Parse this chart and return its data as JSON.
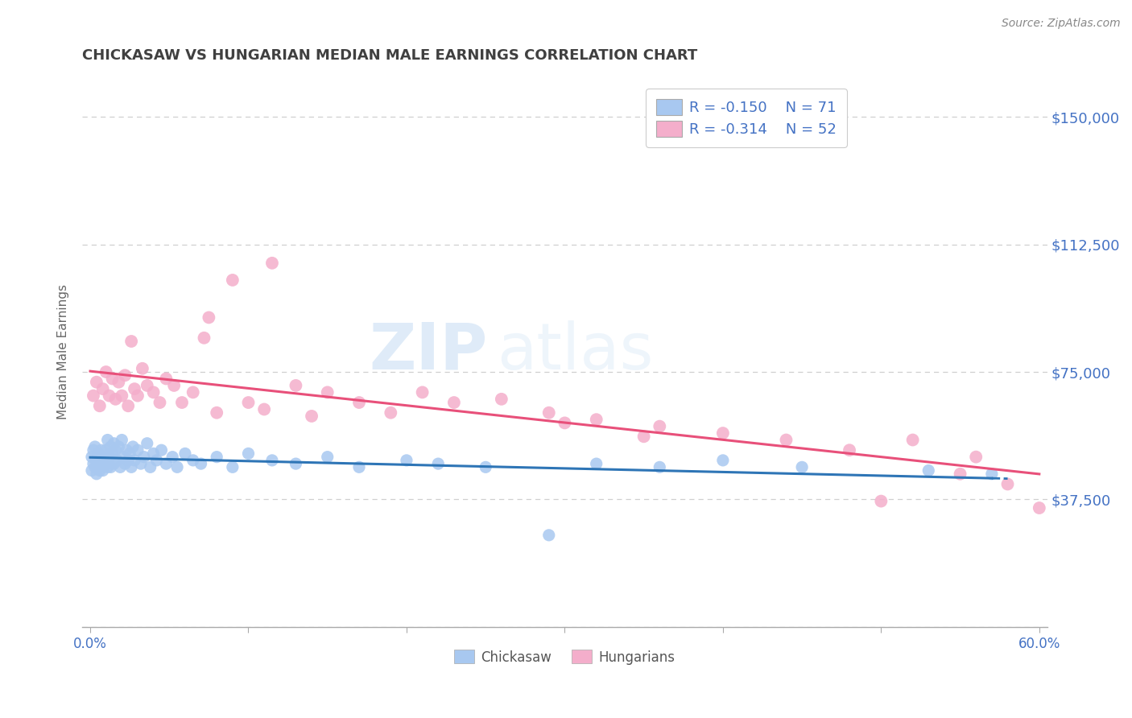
{
  "title": "CHICKASAW VS HUNGARIAN MEDIAN MALE EARNINGS CORRELATION CHART",
  "source_text": "Source: ZipAtlas.com",
  "ylabel": "Median Male Earnings",
  "xlim": [
    -0.005,
    0.605
  ],
  "ylim": [
    0,
    162000
  ],
  "yticks": [
    0,
    37500,
    75000,
    112500,
    150000
  ],
  "ytick_labels": [
    "",
    "$37,500",
    "$75,000",
    "$112,500",
    "$150,000"
  ],
  "xticks": [
    0.0,
    0.1,
    0.2,
    0.3,
    0.4,
    0.5,
    0.6
  ],
  "xtick_labels_show": [
    "0.0%",
    "",
    "",
    "",
    "",
    "",
    "60.0%"
  ],
  "blue_color": "#A8C8F0",
  "pink_color": "#F4AECB",
  "blue_line_color": "#2E75B6",
  "pink_line_color": "#E8507A",
  "legend_R1": "R = -0.150",
  "legend_N1": "N = 71",
  "legend_R2": "R = -0.314",
  "legend_N2": "N = 52",
  "legend_label1": "Chickasaw",
  "legend_label2": "Hungarians",
  "watermark_zip": "ZIP",
  "watermark_atlas": "atlas",
  "title_color": "#404040",
  "tick_label_color": "#4472C4",
  "grid_color": "#BBBBBB",
  "background_color": "#FFFFFF",
  "chickasaw_x": [
    0.001,
    0.001,
    0.002,
    0.002,
    0.003,
    0.003,
    0.004,
    0.004,
    0.005,
    0.005,
    0.006,
    0.006,
    0.007,
    0.007,
    0.008,
    0.008,
    0.009,
    0.01,
    0.01,
    0.011,
    0.011,
    0.012,
    0.013,
    0.013,
    0.014,
    0.015,
    0.015,
    0.016,
    0.017,
    0.018,
    0.019,
    0.02,
    0.021,
    0.022,
    0.023,
    0.024,
    0.025,
    0.026,
    0.027,
    0.028,
    0.03,
    0.032,
    0.034,
    0.036,
    0.038,
    0.04,
    0.042,
    0.045,
    0.048,
    0.052,
    0.055,
    0.06,
    0.065,
    0.07,
    0.08,
    0.09,
    0.1,
    0.115,
    0.13,
    0.15,
    0.17,
    0.2,
    0.22,
    0.25,
    0.29,
    0.32,
    0.36,
    0.4,
    0.45,
    0.53,
    0.57
  ],
  "chickasaw_y": [
    50000,
    46000,
    52000,
    48000,
    53000,
    47000,
    49000,
    45000,
    51000,
    47000,
    50000,
    46000,
    52000,
    48000,
    50000,
    46000,
    49000,
    52000,
    48000,
    55000,
    47000,
    50000,
    53000,
    47000,
    51000,
    54000,
    48000,
    52000,
    49000,
    53000,
    47000,
    55000,
    50000,
    48000,
    52000,
    49000,
    51000,
    47000,
    53000,
    49000,
    52000,
    48000,
    50000,
    54000,
    47000,
    51000,
    49000,
    52000,
    48000,
    50000,
    47000,
    51000,
    49000,
    48000,
    50000,
    47000,
    51000,
    49000,
    48000,
    50000,
    47000,
    49000,
    48000,
    47000,
    27000,
    48000,
    47000,
    49000,
    47000,
    46000,
    45000
  ],
  "hungarian_x": [
    0.002,
    0.004,
    0.006,
    0.008,
    0.01,
    0.012,
    0.014,
    0.016,
    0.018,
    0.02,
    0.022,
    0.024,
    0.026,
    0.028,
    0.03,
    0.033,
    0.036,
    0.04,
    0.044,
    0.048,
    0.053,
    0.058,
    0.065,
    0.072,
    0.08,
    0.09,
    0.1,
    0.115,
    0.13,
    0.15,
    0.17,
    0.19,
    0.21,
    0.23,
    0.26,
    0.29,
    0.32,
    0.36,
    0.4,
    0.44,
    0.48,
    0.52,
    0.56,
    0.3,
    0.35,
    0.075,
    0.11,
    0.14,
    0.6,
    0.58,
    0.55,
    0.5
  ],
  "hungarian_y": [
    68000,
    72000,
    65000,
    70000,
    75000,
    68000,
    73000,
    67000,
    72000,
    68000,
    74000,
    65000,
    84000,
    70000,
    68000,
    76000,
    71000,
    69000,
    66000,
    73000,
    71000,
    66000,
    69000,
    85000,
    63000,
    102000,
    66000,
    107000,
    71000,
    69000,
    66000,
    63000,
    69000,
    66000,
    67000,
    63000,
    61000,
    59000,
    57000,
    55000,
    52000,
    55000,
    50000,
    60000,
    56000,
    91000,
    64000,
    62000,
    35000,
    42000,
    45000,
    37000
  ]
}
